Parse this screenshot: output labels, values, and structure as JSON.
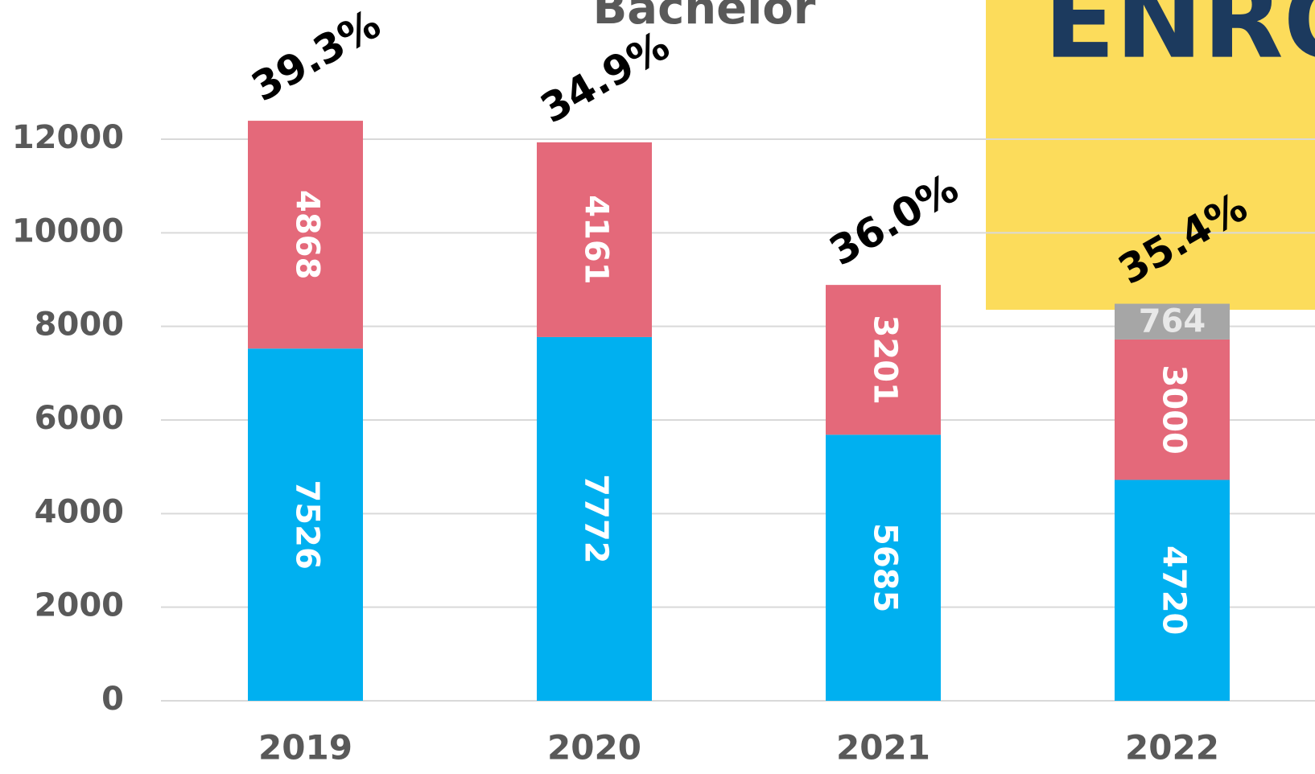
{
  "chart_data": {
    "type": "stacked_bar",
    "title": "Bachelor",
    "banner": "ENRO",
    "categories": [
      "2019",
      "2020",
      "2021",
      "2022"
    ],
    "series": [
      {
        "color": "#00b0f0",
        "values": [
          7526,
          7772,
          5685,
          4720
        ]
      },
      {
        "color": "#e4697a",
        "values": [
          4868,
          4161,
          3201,
          3000
        ]
      },
      {
        "color": "#a6a6a6",
        "values": [
          null,
          null,
          null,
          764
        ]
      }
    ],
    "shares": {
      "values": [
        39.3,
        34.9,
        36.0,
        35.4
      ],
      "value_labels": [
        "39.3%",
        "34.9%",
        "36.0%",
        "35.4%"
      ]
    },
    "ylim": [
      0,
      12000
    ],
    "yticks": [
      0,
      2000,
      4000,
      6000,
      8000,
      10000,
      12000
    ],
    "grid": true
  }
}
